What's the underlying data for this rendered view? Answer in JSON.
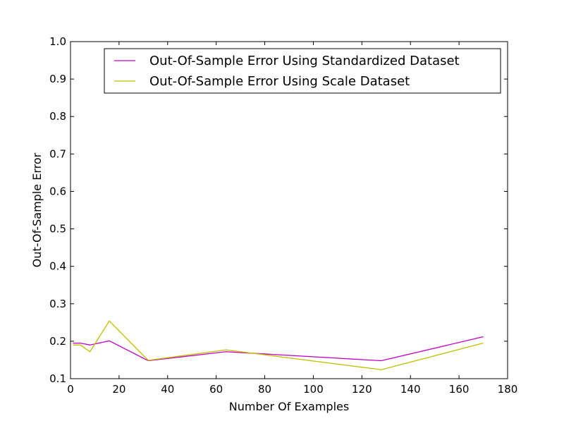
{
  "chart_data": {
    "type": "line",
    "xlabel": "Number Of Examples",
    "ylabel": "Out-Of-Sample Error",
    "xlim": [
      0,
      180
    ],
    "ylim": [
      0.1,
      1.0
    ],
    "x_ticks": [
      "0",
      "20",
      "40",
      "60",
      "80",
      "100",
      "120",
      "140",
      "160",
      "180"
    ],
    "y_ticks": [
      "0.1",
      "0.2",
      "0.3",
      "0.4",
      "0.5",
      "0.6",
      "0.7",
      "0.8",
      "0.9",
      "1.0"
    ],
    "grid": false,
    "legend_position": "top-right",
    "series": [
      {
        "name": "Out-Of-Sample Error Using Standardized Dataset",
        "color": "#c000c0",
        "x": [
          1,
          4,
          8,
          16,
          32,
          64,
          128,
          170
        ],
        "y": [
          0.195,
          0.195,
          0.19,
          0.201,
          0.148,
          0.172,
          0.148,
          0.212
        ]
      },
      {
        "name": "Out-Of-Sample Error Using Scale Dataset",
        "color": "#bfbf00",
        "x": [
          1,
          4,
          8,
          16,
          32,
          64,
          128,
          170
        ],
        "y": [
          0.19,
          0.19,
          0.172,
          0.254,
          0.149,
          0.177,
          0.124,
          0.195
        ]
      }
    ]
  }
}
